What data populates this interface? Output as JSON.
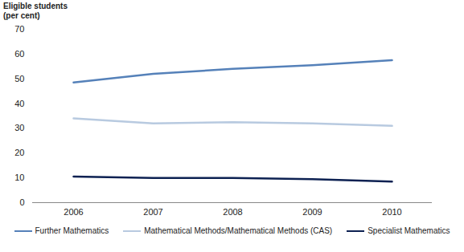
{
  "chart_data": {
    "type": "line",
    "y_label": "Eligible students (per cent)",
    "categories": [
      "2006",
      "2007",
      "2008",
      "2009",
      "2010"
    ],
    "series": [
      {
        "name": "Further Mathematics",
        "color": "#5581b9",
        "values": [
          48.5,
          52,
          54,
          55.5,
          57.5
        ]
      },
      {
        "name": "Mathematical Methods/Mathematical Methods (CAS)",
        "color": "#b8cae0",
        "values": [
          34,
          32,
          32.5,
          32,
          31
        ]
      },
      {
        "name": "Specialist Mathematics",
        "color": "#0d2152",
        "values": [
          10.5,
          10,
          10,
          9.5,
          8.5
        ]
      }
    ],
    "ylim": [
      0,
      70
    ],
    "yticks": [
      0,
      10,
      20,
      30,
      40,
      50,
      60,
      70
    ],
    "grid": false,
    "legend": "bottom"
  }
}
